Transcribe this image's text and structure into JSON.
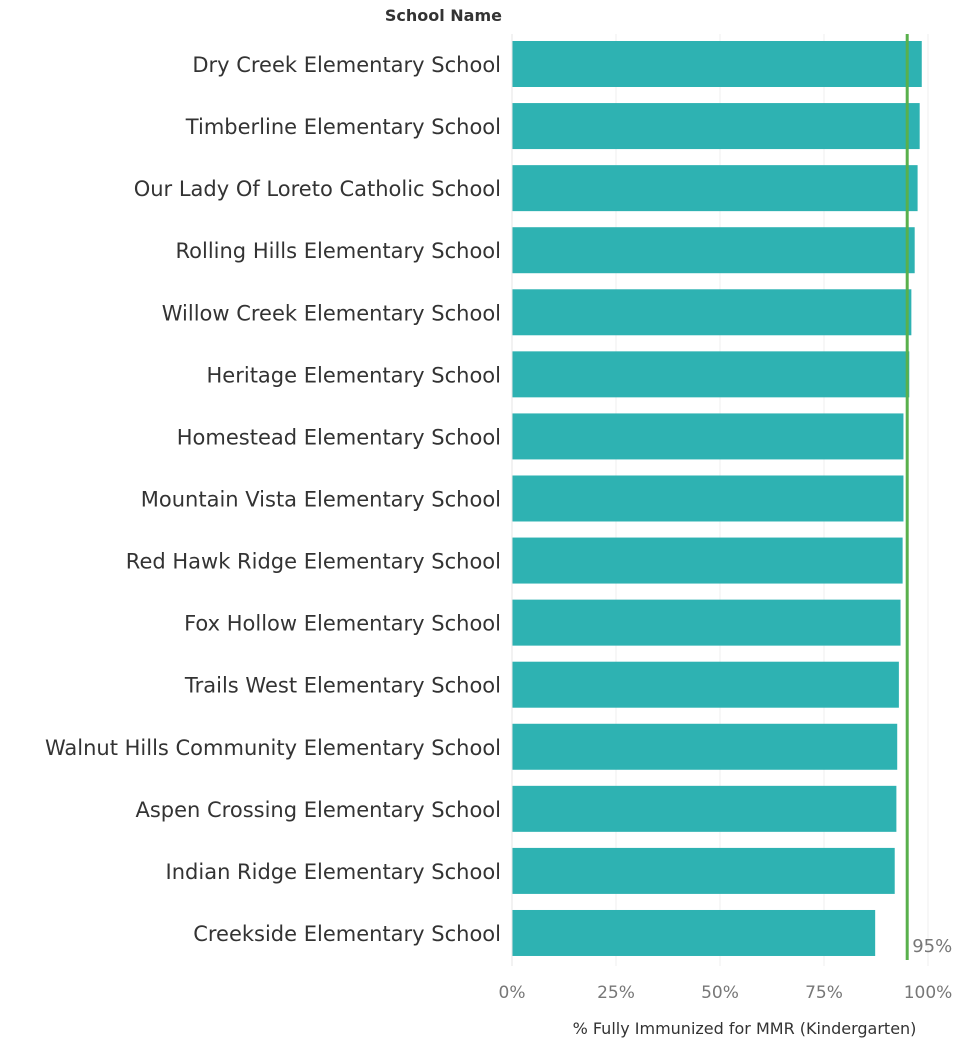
{
  "chart_data": {
    "type": "bar",
    "orientation": "horizontal",
    "row_header": "School Name",
    "categories": [
      "Dry Creek Elementary School",
      "Timberline Elementary School",
      "Our Lady Of Loreto Catholic School",
      "Rolling Hills Elementary School",
      "Willow Creek Elementary School",
      "Heritage Elementary School",
      "Homestead Elementary School",
      "Mountain Vista Elementary School",
      "Red Hawk Ridge Elementary School",
      "Fox Hollow Elementary School",
      "Trails West Elementary School",
      "Walnut Hills Community Elementary School",
      "Aspen Crossing Elementary School",
      "Indian Ridge Elementary School",
      "Creekside Elementary School"
    ],
    "values": [
      98.5,
      98.0,
      97.5,
      96.8,
      96.0,
      95.5,
      94.1,
      94.1,
      93.9,
      93.4,
      93.0,
      92.6,
      92.4,
      92.0,
      87.3
    ],
    "xlabel": "% Fully Immunized for MMR (Kindergarten)",
    "xlim": [
      0,
      100
    ],
    "x_ticks": [
      0,
      25,
      50,
      75,
      100
    ],
    "x_tick_labels": [
      "0%",
      "25%",
      "50%",
      "75%",
      "100%"
    ],
    "reference_line": {
      "value": 95,
      "label": "95%",
      "color": "#59b04c"
    },
    "bar_color": "#2eb2b2",
    "grid": true,
    "legend": "none"
  }
}
